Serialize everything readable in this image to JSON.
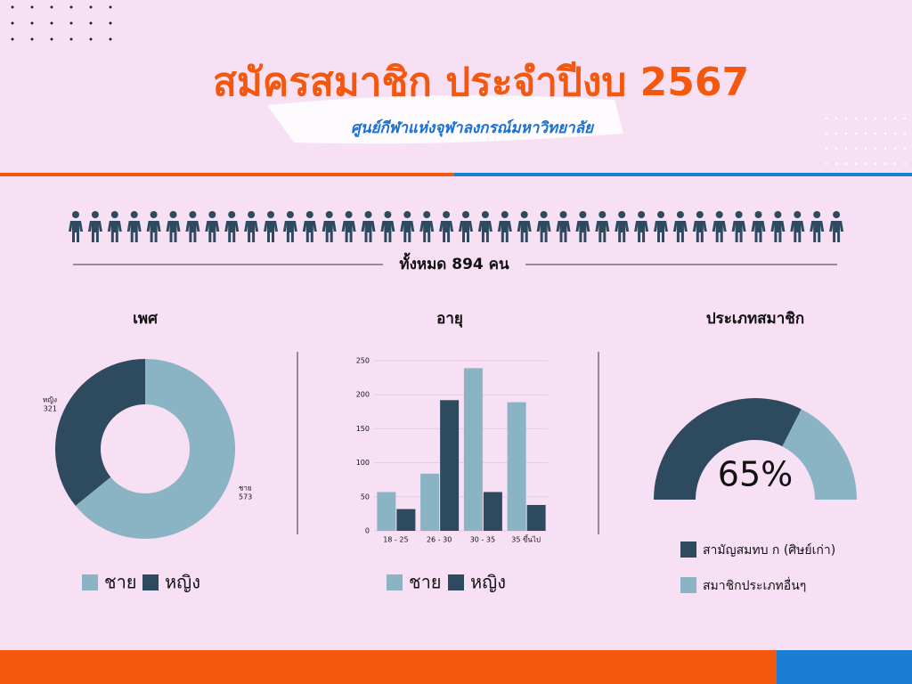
{
  "header": {
    "title": "สมัครสมาชิก ประจำปีงบ 2567",
    "subtitle": "ศูนย์กีฬาแห่งจุฬาลงกรณ์มหาวิทยาลัย",
    "total": "ทั้งหมด 894 คน"
  },
  "chart_data": [
    {
      "type": "donut",
      "title": "เพศ",
      "categories": [
        "ชาย",
        "หญิง"
      ],
      "values": [
        573,
        321
      ],
      "colors": [
        "#8ab4c4",
        "#2d4a5e"
      ]
    },
    {
      "type": "bar",
      "title": "อายุ",
      "categories": [
        "18 - 25",
        "26 - 30",
        "30 - 35",
        "35 ขึ้นไป"
      ],
      "series": [
        {
          "name": "ชาย",
          "color": "#8ab4c4",
          "values": [
            57,
            84,
            239,
            189
          ]
        },
        {
          "name": "หญิง",
          "color": "#2d4a5e",
          "values": [
            32,
            192,
            57,
            38
          ]
        }
      ],
      "ylim": [
        0,
        250
      ],
      "yticks": [
        0,
        50,
        100,
        150,
        200,
        250
      ],
      "grid": true
    },
    {
      "type": "gauge",
      "title": "ประเภทสมาชิก",
      "categories": [
        "สามัญสมทบ ก (ศิษย์เก่า)",
        "สมาชิกประเภทอื่นๆ"
      ],
      "values": [
        65,
        35
      ],
      "value_labels": [
        "65%",
        null
      ],
      "colors": [
        "#2d4a5e",
        "#8ab4c4"
      ]
    }
  ]
}
